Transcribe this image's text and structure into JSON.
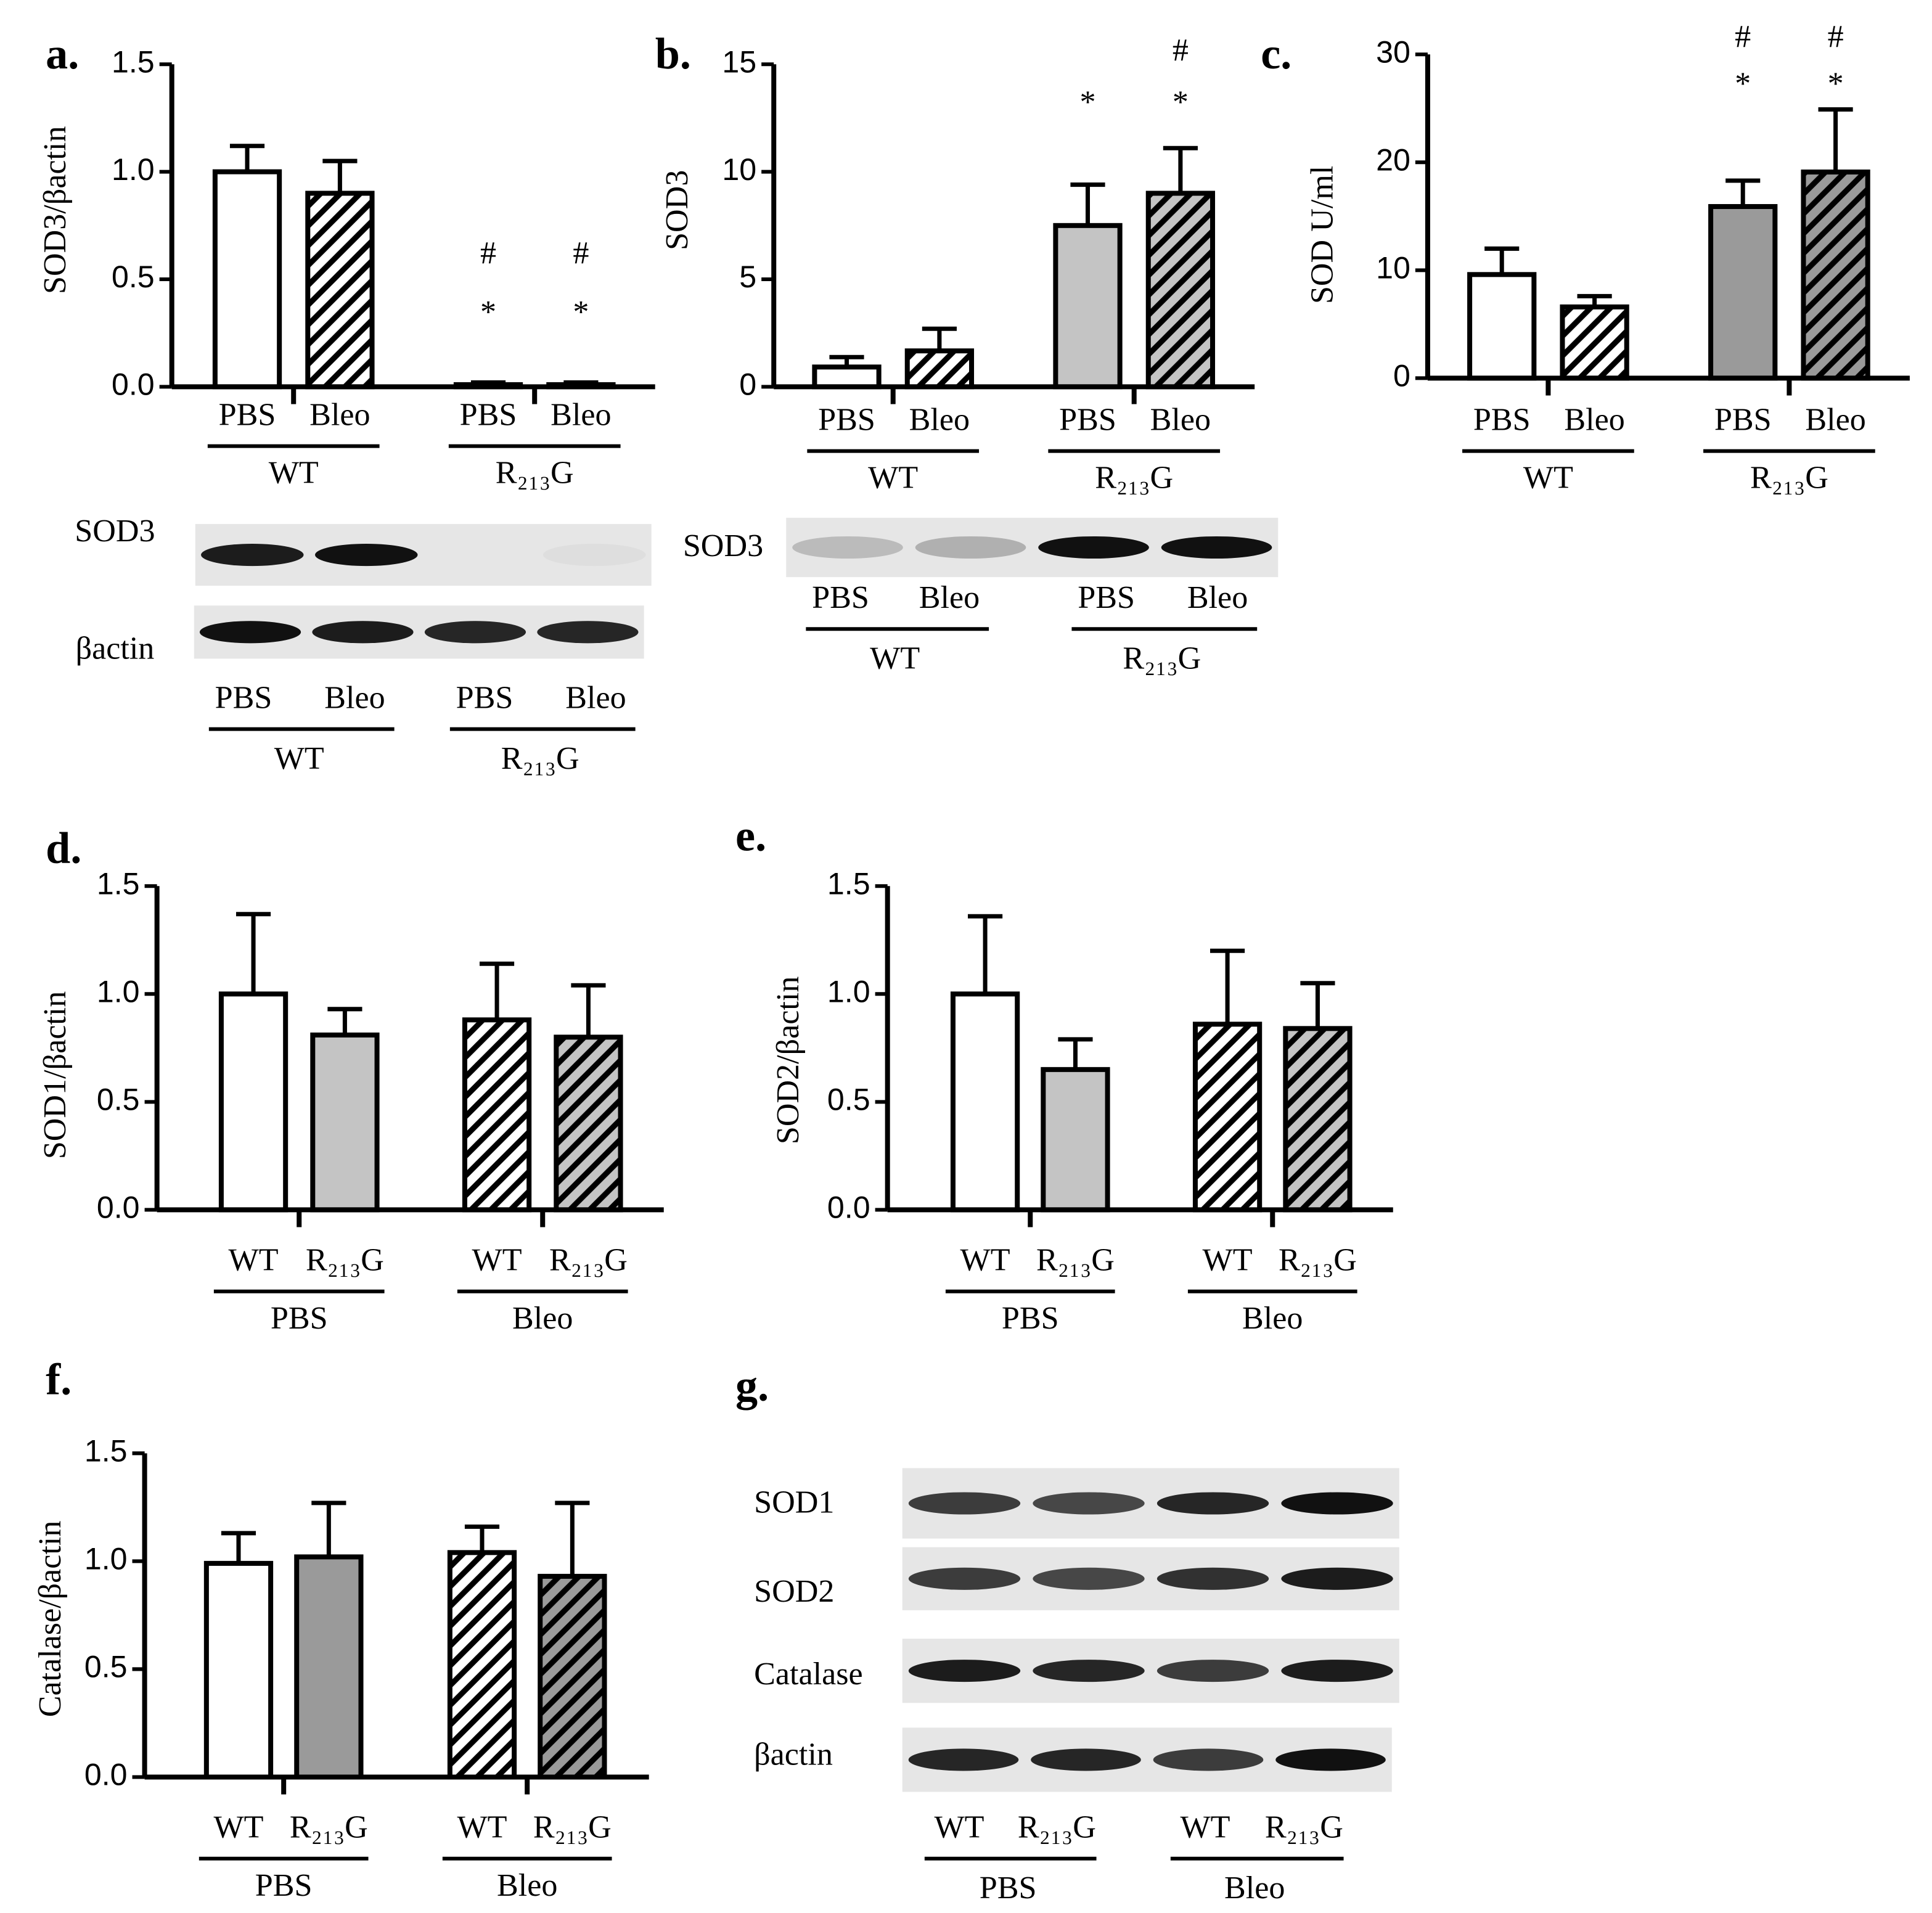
{
  "chart_data": [
    {
      "type": "bar",
      "panel": "a.",
      "y_label": "SOD3/βactin",
      "categories": [
        "PBS",
        "Bleo",
        "PBS",
        "Bleo"
      ],
      "groups": [
        "WT",
        "R₂₁₃G"
      ],
      "values": [
        1.0,
        0.9,
        0.01,
        0.01
      ],
      "errors": [
        0.12,
        0.15,
        0.01,
        0.01
      ],
      "colors": [
        "#ffffff",
        "#ffffff",
        "#ffffff",
        "#ffffff"
      ],
      "hatch": [
        false,
        true,
        false,
        true
      ],
      "stars": [
        null,
        null,
        "*",
        "*"
      ],
      "hashes": [
        null,
        null,
        "#",
        "#"
      ],
      "ylim": [
        0,
        1.5
      ],
      "yticks": [
        {
          "value": 0,
          "label": "0.0"
        },
        0.5,
        {
          "value": 1,
          "label": "1.0"
        },
        1.5
      ]
    },
    {
      "type": "bar",
      "panel": "b.",
      "y_label": "SOD3",
      "categories": [
        "PBS",
        "Bleo",
        "PBS",
        "Bleo"
      ],
      "groups": [
        "WT",
        "R₂₁₃G"
      ],
      "values": [
        0.92,
        1.67,
        7.5,
        9.0
      ],
      "errors": [
        0.46,
        1.03,
        1.9,
        2.1
      ],
      "colors": [
        "#ffffff",
        "#ffffff",
        "#c4c4c4",
        "#c4c4c4"
      ],
      "hatch": [
        false,
        true,
        false,
        true
      ],
      "stars": [
        null,
        null,
        "*",
        "*"
      ],
      "hashes": [
        null,
        null,
        null,
        "#"
      ],
      "ylim": [
        0,
        15
      ],
      "yticks": [
        0,
        5,
        10,
        15
      ]
    },
    {
      "type": "bar",
      "panel": "c.",
      "y_label": "SOD U/ml",
      "categories": [
        "PBS",
        "Bleo",
        "PBS",
        "Bleo"
      ],
      "groups": [
        "WT",
        "R₂₁₃G"
      ],
      "values": [
        9.6,
        6.6,
        15.9,
        19.1
      ],
      "errors": [
        2.4,
        1.0,
        2.4,
        5.8
      ],
      "colors": [
        "#ffffff",
        "#ffffff",
        "#9a9a9a",
        "#9a9a9a"
      ],
      "hatch": [
        false,
        true,
        false,
        true
      ],
      "stars": [
        null,
        null,
        "*",
        "*"
      ],
      "hashes": [
        null,
        null,
        "#",
        "#"
      ],
      "ylim": [
        0,
        30
      ],
      "yticks": [
        0,
        10,
        20,
        30
      ]
    },
    {
      "type": "bar",
      "panel": "d.",
      "y_label": "SOD1/βactin",
      "categories": [
        "WT",
        "R₂₁₃G",
        "WT",
        "R₂₁₃G"
      ],
      "groups": [
        "PBS",
        "Bleo"
      ],
      "values": [
        1.0,
        0.81,
        0.88,
        0.8
      ],
      "errors": [
        0.37,
        0.12,
        0.26,
        0.24
      ],
      "colors": [
        "#ffffff",
        "#c4c4c4",
        "#ffffff",
        "#c4c4c4"
      ],
      "hatch": [
        false,
        false,
        true,
        true
      ],
      "ylim": [
        0,
        1.5
      ],
      "yticks": [
        {
          "value": 0,
          "label": "0.0"
        },
        0.5,
        {
          "value": 1,
          "label": "1.0"
        },
        1.5
      ]
    },
    {
      "type": "bar",
      "panel": "e.",
      "y_label": "SOD2/βactin",
      "categories": [
        "WT",
        "R₂₁₃G",
        "WT",
        "R₂₁₃G"
      ],
      "groups": [
        "PBS",
        "Bleo"
      ],
      "values": [
        1.0,
        0.65,
        0.86,
        0.84
      ],
      "errors": [
        0.36,
        0.14,
        0.34,
        0.21
      ],
      "colors": [
        "#ffffff",
        "#c4c4c4",
        "#ffffff",
        "#c4c4c4"
      ],
      "hatch": [
        false,
        false,
        true,
        true
      ],
      "ylim": [
        0,
        1.5
      ],
      "yticks": [
        {
          "value": 0,
          "label": "0.0"
        },
        0.5,
        {
          "value": 1,
          "label": "1.0"
        },
        1.5
      ]
    },
    {
      "type": "bar",
      "panel": "f.",
      "y_label": "Catalase/βactin",
      "categories": [
        "WT",
        "R₂₁₃G",
        "WT",
        "R₂₁₃G"
      ],
      "groups": [
        "PBS",
        "Bleo"
      ],
      "values": [
        0.99,
        1.02,
        1.04,
        0.93
      ],
      "errors": [
        0.14,
        0.25,
        0.12,
        0.34
      ],
      "colors": [
        "#ffffff",
        "#9a9a9a",
        "#ffffff",
        "#9a9a9a"
      ],
      "hatch": [
        false,
        false,
        true,
        true
      ],
      "ylim": [
        0,
        1.5
      ],
      "yticks": [
        {
          "value": 0,
          "label": "0.0"
        },
        0.5,
        {
          "value": 1,
          "label": "1.0"
        },
        1.5
      ]
    }
  ],
  "blots": [
    {
      "rows": [
        "SOD3",
        "βactin"
      ],
      "lanes": [
        "PBS",
        "Bleo",
        "PBS",
        "Bleo"
      ],
      "groups": [
        "WT",
        "R₂₁₃G"
      ]
    },
    {
      "rows": [
        "SOD3"
      ],
      "lanes": [
        "PBS",
        "Bleo",
        "PBS",
        "Bleo"
      ],
      "groups": [
        "WT",
        "R₂₁₃G"
      ]
    },
    {
      "panel": "g.",
      "rows": [
        "SOD1",
        "SOD2",
        "Catalase",
        "βactin"
      ],
      "lanes": [
        "WT",
        "R₂₁₃G",
        "WT",
        "R₂₁₃G"
      ],
      "groups": [
        "PBS",
        "Bleo"
      ]
    }
  ]
}
